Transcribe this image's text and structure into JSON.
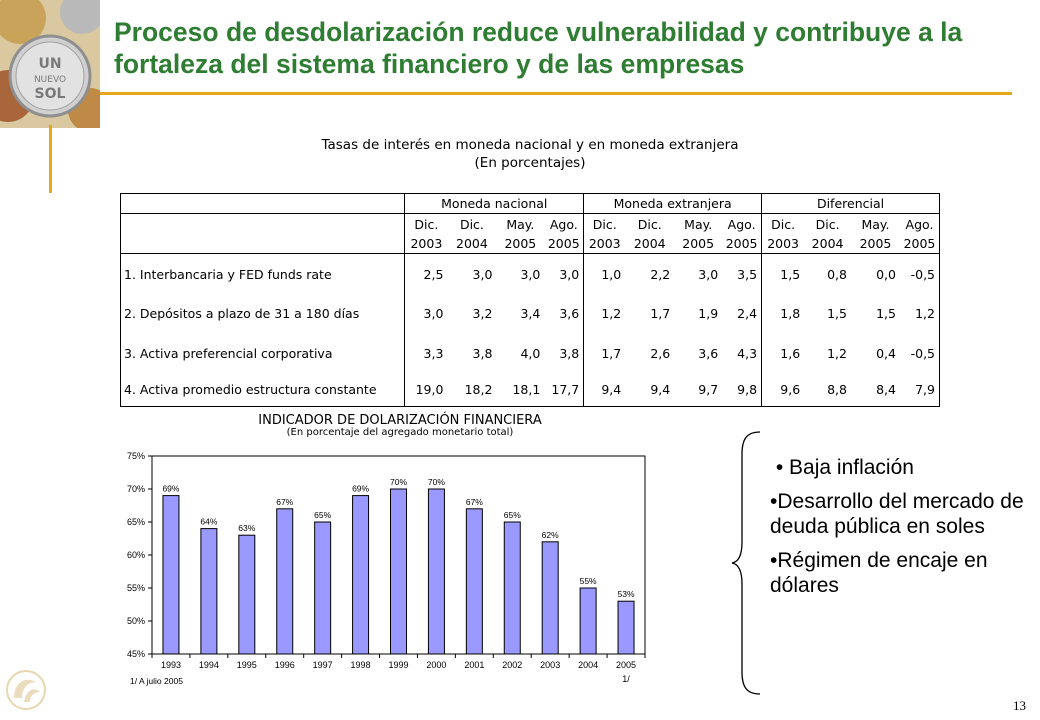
{
  "slide": {
    "title": "Proceso de desdolarización reduce vulnerabilidad y contribuye a la fortaleza del sistema financiero y de las empresas",
    "page_number": "13"
  },
  "coins_image": {
    "text_line1": "UN",
    "text_line2": "NUEVO",
    "text_line3": "SOL"
  },
  "rates_table": {
    "title": "Tasas de interés en moneda nacional y en moneda extranjera",
    "subtitle": "(En porcentajes)",
    "groups": [
      "Moneda nacional",
      "Moneda extranjera",
      "Diferencial"
    ],
    "period_months": [
      "Dic.",
      "Dic.",
      "May.",
      "Ago."
    ],
    "period_years": [
      "2003",
      "2004",
      "2005",
      "2005"
    ],
    "rows": [
      {
        "label": "1. Interbancaria y FED funds rate",
        "values": [
          "2,5",
          "3,0",
          "3,0",
          "3,0",
          "1,0",
          "2,2",
          "3,0",
          "3,5",
          "1,5",
          "0,8",
          "0,0",
          "-0,5"
        ]
      },
      {
        "label": "2. Depósitos a plazo de 31 a 180 días",
        "values": [
          "3,0",
          "3,2",
          "3,4",
          "3,6",
          "1,2",
          "1,7",
          "1,9",
          "2,4",
          "1,8",
          "1,5",
          "1,5",
          "1,2"
        ]
      },
      {
        "label": "3. Activa preferencial corporativa",
        "values": [
          "3,3",
          "3,8",
          "4,0",
          "3,8",
          "1,7",
          "2,6",
          "3,6",
          "4,3",
          "1,6",
          "1,2",
          "0,4",
          "-0,5"
        ]
      },
      {
        "label": "4. Activa promedio estructura constante",
        "values": [
          "19,0",
          "18,2",
          "18,1",
          "17,7",
          "9,4",
          "9,4",
          "9,7",
          "9,8",
          "9,6",
          "8,8",
          "8,4",
          "7,9"
        ]
      }
    ]
  },
  "chart_data": {
    "type": "bar",
    "title": "INDICADOR DE DOLARIZACIÓN FINANCIERA",
    "subtitle": "(En porcentaje del agregado monetario total)",
    "categories": [
      "1993",
      "1994",
      "1995",
      "1996",
      "1997",
      "1998",
      "1999",
      "2000",
      "2001",
      "2002",
      "2003",
      "2004",
      "2005"
    ],
    "values": [
      69,
      64,
      63,
      67,
      65,
      69,
      70,
      70,
      67,
      65,
      62,
      55,
      53
    ],
    "value_labels": [
      "69%",
      "64%",
      "63%",
      "67%",
      "65%",
      "69%",
      "70%",
      "70%",
      "67%",
      "65%",
      "62%",
      "55%",
      "53%"
    ],
    "yticks": [
      "45%",
      "50%",
      "55%",
      "60%",
      "65%",
      "70%",
      "75%"
    ],
    "ylim": [
      45,
      75
    ],
    "footnote_marker": "1/",
    "footnote": "1/ A julio 2005",
    "bar_color": "#9999ff"
  },
  "bullets": [
    "Baja inflación",
    "Desarrollo del mercado de deuda pública en soles",
    "Régimen de encaje en dólares"
  ],
  "bullet_char": "•",
  "colors": {
    "title": "#2e7d32",
    "accent_bar": "#e6a81a",
    "bar_fill": "#9999ff"
  }
}
